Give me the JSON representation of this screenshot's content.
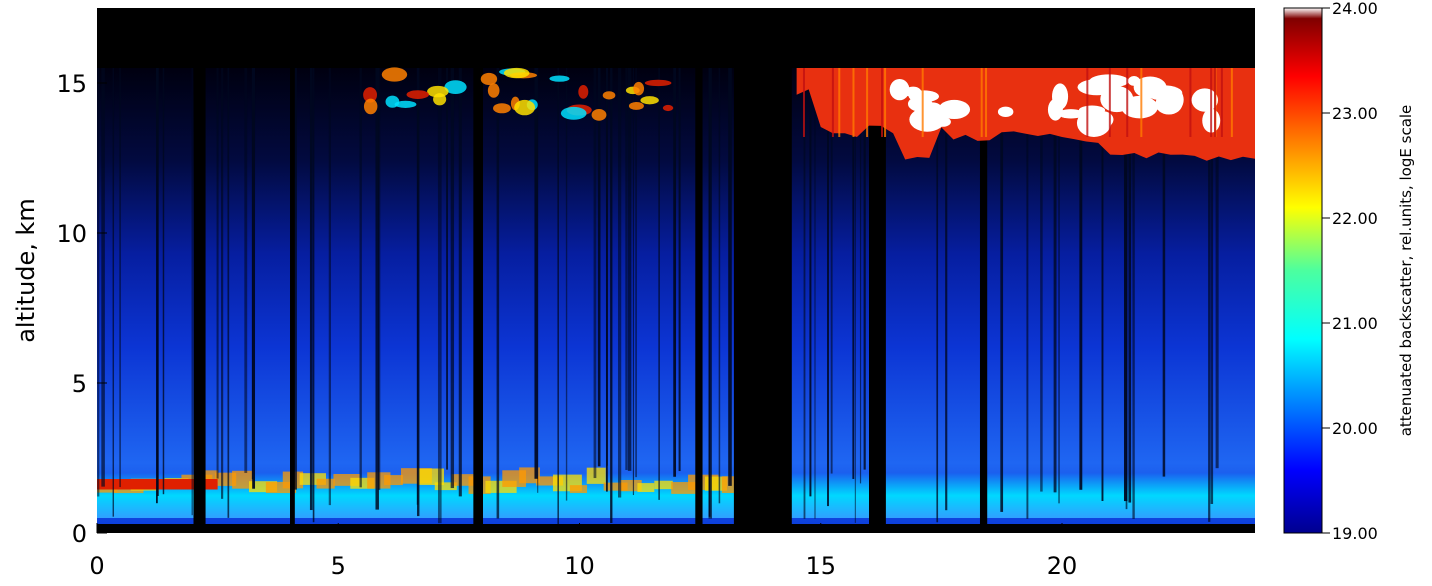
{
  "chart_data": {
    "type": "heatmap",
    "title": "",
    "xlabel": "",
    "ylabel": "altitude, km",
    "xlim": [
      0,
      24
    ],
    "ylim": [
      0,
      17.5
    ],
    "x_ticks": [
      0,
      5,
      10,
      15,
      20
    ],
    "y_ticks": [
      0,
      5,
      10,
      15
    ],
    "grid": false,
    "colorbar": {
      "label": "attenuated backscatter, rel.units, logE scale",
      "range": [
        19.0,
        24.0
      ],
      "ticks": [
        "19.00",
        "20.00",
        "21.00",
        "22.00",
        "23.00",
        "24.00"
      ],
      "colormap": "jet"
    },
    "features": {
      "signal_top_altitude_km": 15.5,
      "boundary_layer_aerosol_altitude_km": [
        0.5,
        2.0
      ],
      "high_cloud": {
        "x_range": [
          14.5,
          24
        ],
        "altitude_km": [
          12.3,
          15.5
        ]
      },
      "sparse_cloud": {
        "x_range": [
          5.5,
          12
        ],
        "altitude_km": [
          13.8,
          15.5
        ]
      },
      "no_signal_interval": [
        13.2,
        14.4
      ]
    }
  }
}
